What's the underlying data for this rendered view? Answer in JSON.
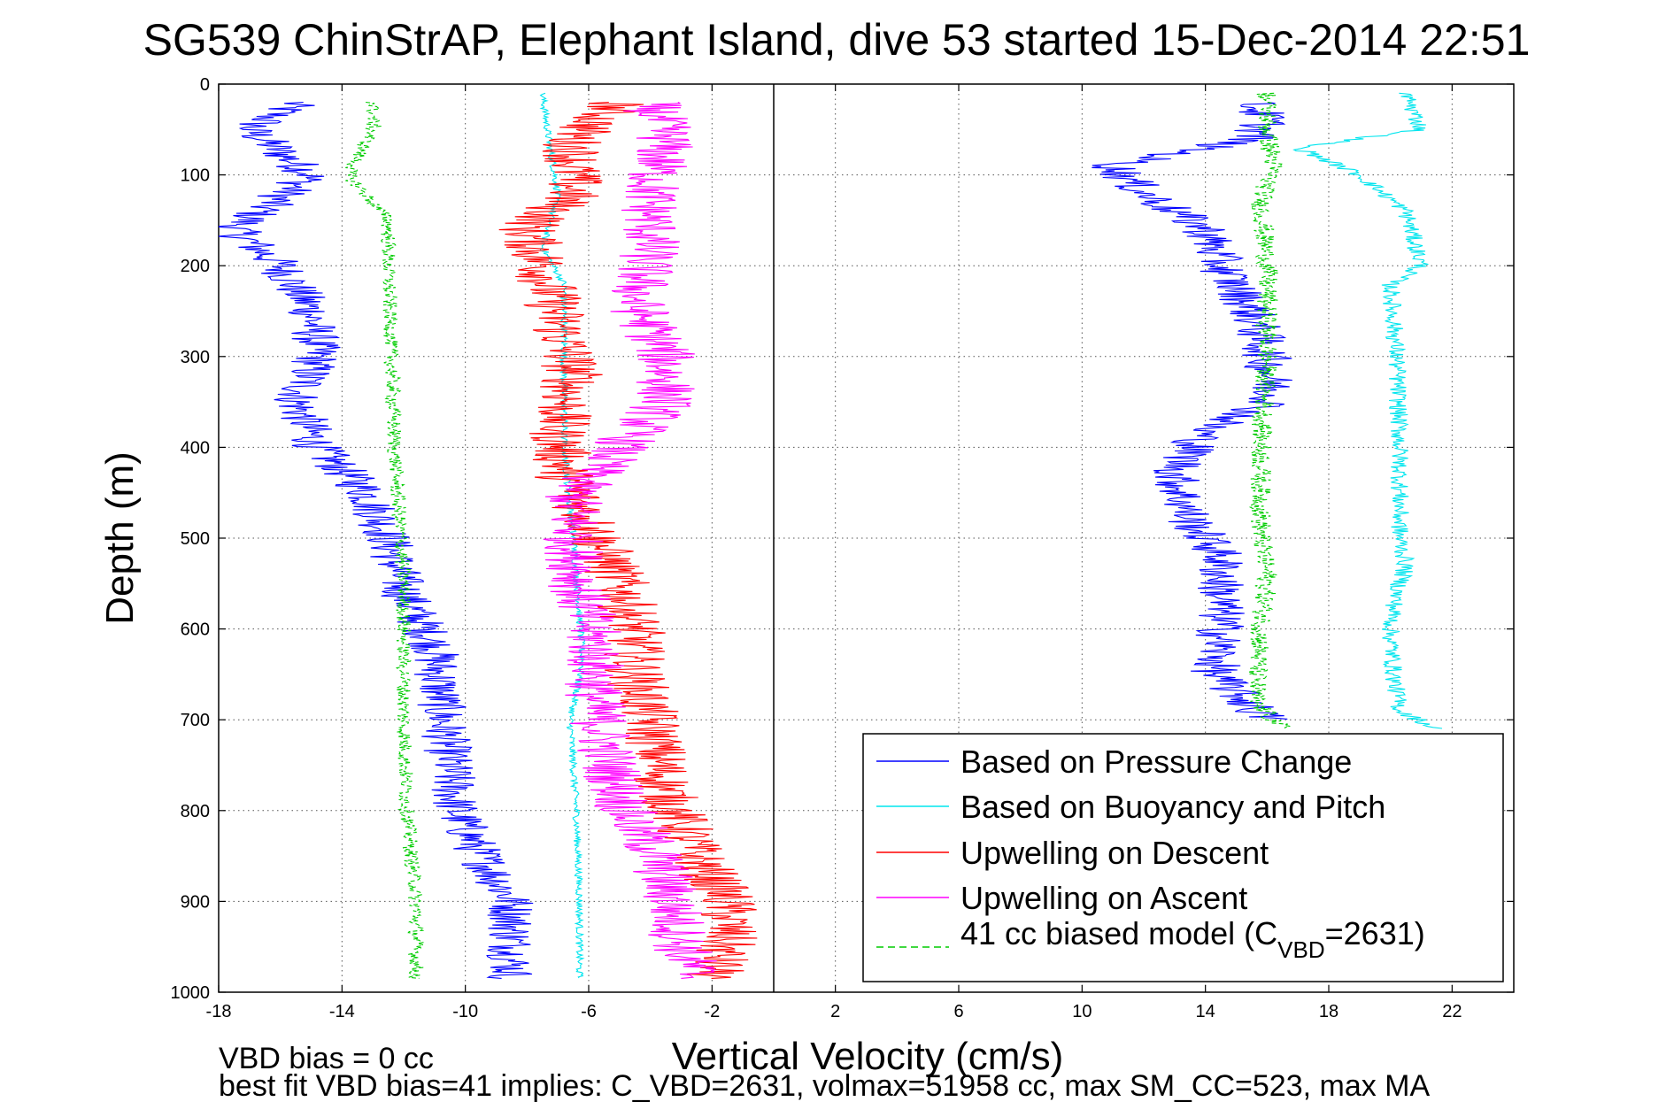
{
  "chart_data": {
    "type": "line",
    "title": "SG539 ChinStrAP, Elephant Island, dive 53 started 15-Dec-2014 22:51",
    "xlabel": "Vertical Velocity (cm/s)",
    "ylabel": "Depth (m)",
    "xlim": [
      -18,
      24
    ],
    "ylim": [
      0,
      1000
    ],
    "y_reversed": true,
    "grid": true,
    "xticks": [
      "-18",
      "-14",
      "-10",
      "-6",
      "-2",
      "2",
      "6",
      "10",
      "14",
      "18",
      "22"
    ],
    "yticks": [
      "0",
      "100",
      "200",
      "300",
      "400",
      "500",
      "600",
      "700",
      "800",
      "900",
      "1000"
    ],
    "vline_x": 0,
    "legend_position": "bottom-right",
    "legend": {
      "entries": [
        "Based on Pressure Change",
        "Based on Buoyancy and Pitch",
        "Upwelling on Descent",
        "Upwelling on Ascent"
      ],
      "model_prefix": "41 cc biased model (C",
      "model_subscript": "VBD",
      "model_suffix": "=2631)"
    },
    "series": [
      {
        "name": "Based on Pressure Change",
        "color": "#0000ff",
        "style": "solid",
        "noise": 0.8,
        "points": [
          [
            -15.5,
            20
          ],
          [
            -17,
            50
          ],
          [
            -15,
            100
          ],
          [
            -17.5,
            160
          ],
          [
            -16,
            200
          ],
          [
            -15,
            250
          ],
          [
            -14.8,
            300
          ],
          [
            -15.5,
            350
          ],
          [
            -14.8,
            400
          ],
          [
            -13.2,
            450
          ],
          [
            -12.5,
            500
          ],
          [
            -12,
            560
          ],
          [
            -11,
            620
          ],
          [
            -10.8,
            680
          ],
          [
            -10.5,
            750
          ],
          [
            -10.3,
            800
          ],
          [
            -9.5,
            850
          ],
          [
            -8.5,
            900
          ],
          [
            -8.5,
            950
          ],
          [
            -8.5,
            985
          ]
        ]
      },
      {
        "name": "Based on Buoyancy and Pitch",
        "color": "#00e5ee",
        "style": "solid",
        "noise": 0.12,
        "points": [
          [
            -7.5,
            10
          ],
          [
            -7.3,
            60
          ],
          [
            -7,
            120
          ],
          [
            -7.5,
            180
          ],
          [
            -6.8,
            220
          ],
          [
            -6.8,
            300
          ],
          [
            -6.8,
            400
          ],
          [
            -6.5,
            500
          ],
          [
            -6.3,
            580
          ],
          [
            -6.2,
            640
          ],
          [
            -6.6,
            700
          ],
          [
            -6.4,
            800
          ],
          [
            -6.3,
            900
          ],
          [
            -6.3,
            985
          ]
        ]
      },
      {
        "name": "Upwelling on Descent",
        "color": "#ff0000",
        "style": "solid",
        "noise": 1.0,
        "points": [
          [
            -5,
            20
          ],
          [
            -6.5,
            60
          ],
          [
            -6.5,
            120
          ],
          [
            -8,
            160
          ],
          [
            -7.5,
            200
          ],
          [
            -7,
            260
          ],
          [
            -6.5,
            320
          ],
          [
            -7,
            380
          ],
          [
            -6.8,
            430
          ],
          [
            -6,
            480
          ],
          [
            -5,
            550
          ],
          [
            -4.5,
            600
          ],
          [
            -4.5,
            650
          ],
          [
            -4,
            700
          ],
          [
            -3.5,
            780
          ],
          [
            -2.5,
            850
          ],
          [
            -1.5,
            900
          ],
          [
            -1.5,
            940
          ],
          [
            -2,
            985
          ]
        ]
      },
      {
        "name": "Upwelling on Ascent",
        "color": "#ff00ff",
        "style": "solid",
        "noise": 1.0,
        "points": [
          [
            -4,
            20
          ],
          [
            -3.5,
            60
          ],
          [
            -4,
            120
          ],
          [
            -4,
            180
          ],
          [
            -4.5,
            240
          ],
          [
            -3.5,
            300
          ],
          [
            -3.5,
            350
          ],
          [
            -5,
            400
          ],
          [
            -6.5,
            450
          ],
          [
            -6.5,
            500
          ],
          [
            -6.3,
            560
          ],
          [
            -5.8,
            620
          ],
          [
            -5.8,
            680
          ],
          [
            -5.3,
            750
          ],
          [
            -4.8,
            800
          ],
          [
            -3.8,
            850
          ],
          [
            -3.3,
            900
          ],
          [
            -3,
            950
          ],
          [
            -2.5,
            985
          ]
        ]
      },
      {
        "name": "41 cc biased model (CVBD=2631)",
        "color": "#00cc00",
        "style": "dashed",
        "noise": 0.25,
        "points": [
          [
            -13,
            20
          ],
          [
            -13,
            50
          ],
          [
            -13.8,
            100
          ],
          [
            -12.5,
            150
          ],
          [
            -12.5,
            200
          ],
          [
            -12.4,
            300
          ],
          [
            -12.3,
            400
          ],
          [
            -12.1,
            500
          ],
          [
            -12,
            550
          ],
          [
            -12,
            600
          ],
          [
            -12,
            700
          ],
          [
            -11.9,
            800
          ],
          [
            -11.6,
            900
          ],
          [
            -11.6,
            985
          ]
        ]
      },
      {
        "name": "Based on Pressure Change (ascent)",
        "color": "#0000ff",
        "style": "solid",
        "noise": 0.8,
        "points": [
          [
            15.5,
            20
          ],
          [
            16,
            40
          ],
          [
            15.5,
            60
          ],
          [
            11,
            90
          ],
          [
            12,
            120
          ],
          [
            14,
            160
          ],
          [
            14.5,
            200
          ],
          [
            15.5,
            250
          ],
          [
            16,
            300
          ],
          [
            16.2,
            350
          ],
          [
            14,
            380
          ],
          [
            13,
            430
          ],
          [
            13.5,
            480
          ],
          [
            14.5,
            520
          ],
          [
            14.5,
            560
          ],
          [
            14.5,
            600
          ],
          [
            14.3,
            650
          ],
          [
            16,
            700
          ]
        ]
      },
      {
        "name": "Based on Buoyancy and Pitch (ascent)",
        "color": "#00e5ee",
        "style": "solid",
        "noise": 0.3,
        "points": [
          [
            20.5,
            10
          ],
          [
            21,
            50
          ],
          [
            17,
            70
          ],
          [
            19,
            100
          ],
          [
            20.5,
            140
          ],
          [
            21,
            200
          ],
          [
            20,
            220
          ],
          [
            20.2,
            300
          ],
          [
            20.3,
            400
          ],
          [
            20.3,
            500
          ],
          [
            20.5,
            530
          ],
          [
            20.2,
            560
          ],
          [
            20,
            600
          ],
          [
            20.1,
            650
          ],
          [
            20.3,
            690
          ],
          [
            21.5,
            710
          ]
        ]
      },
      {
        "name": "41 cc biased model (ascent)",
        "color": "#00cc00",
        "style": "dashed",
        "noise": 0.35,
        "points": [
          [
            16,
            10
          ],
          [
            16,
            50
          ],
          [
            16.2,
            90
          ],
          [
            15.8,
            130
          ],
          [
            16,
            200
          ],
          [
            16,
            300
          ],
          [
            15.8,
            400
          ],
          [
            15.8,
            500
          ],
          [
            16,
            540
          ],
          [
            15.8,
            600
          ],
          [
            15.6,
            680
          ],
          [
            16.5,
            710
          ]
        ]
      }
    ],
    "notes": [
      "VBD bias = 0 cc",
      "best fit VBD bias=41 implies: C_VBD=2631, volmax=51958 cc, max SM_CC=523, max MA"
    ]
  }
}
